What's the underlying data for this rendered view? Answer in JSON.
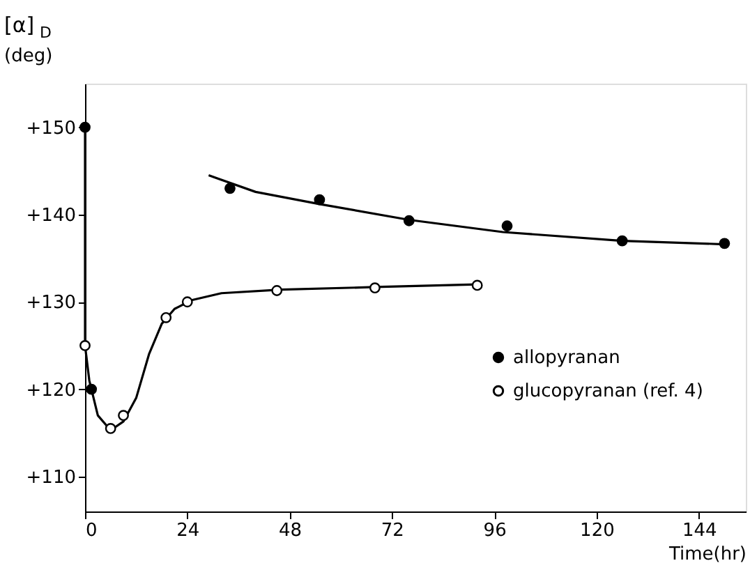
{
  "chart_data": {
    "type": "scatter",
    "xlabel": "Time(hr)",
    "ylabel": "[α]$_{D}$ (deg)",
    "xlim": [
      0,
      155
    ],
    "ylim": [
      106,
      155
    ],
    "xticks": [
      0,
      24,
      48,
      72,
      96,
      120,
      144
    ],
    "yticks": [
      {
        "value": 110,
        "label": "+110"
      },
      {
        "value": 120,
        "label": "+120"
      },
      {
        "value": 130,
        "label": "+130"
      },
      {
        "value": 140,
        "label": "+140"
      },
      {
        "value": 150,
        "label": "+150"
      }
    ],
    "grid": false,
    "legend": "right",
    "series": [
      {
        "name": "allopyranan",
        "marker": "circle",
        "color": "#000000",
        "x": [
          0,
          1.5,
          34,
          55,
          76,
          99,
          126,
          150
        ],
        "values": [
          150,
          120,
          143,
          141.7,
          139.3,
          138.7,
          137,
          136.7
        ]
      },
      {
        "name": "glucopyranan (ref. 4)",
        "marker": "circle",
        "color": "#ffffff",
        "x": [
          0,
          6,
          9,
          19,
          24,
          45,
          68,
          92
        ],
        "values": [
          125,
          115.5,
          117,
          128.2,
          130,
          131.3,
          131.6,
          131.9
        ]
      },
      {
        "type": "line",
        "marker": "none",
        "color": "#000000",
        "x": [
          29,
          40,
          55,
          76,
          98,
          126,
          150
        ],
        "values": [
          144.5,
          142.6,
          141.2,
          139.4,
          138,
          137,
          136.6
        ]
      },
      {
        "type": "line",
        "marker": "none",
        "color": "#000000",
        "x": [
          0,
          0,
          1,
          3,
          6,
          9,
          12,
          15,
          18,
          21,
          25,
          32,
          46,
          68,
          92
        ],
        "values": [
          150,
          125,
          121,
          117,
          115.3,
          116.3,
          119,
          124,
          127.5,
          129.2,
          130.2,
          131,
          131.4,
          131.7,
          132
        ]
      }
    ]
  }
}
